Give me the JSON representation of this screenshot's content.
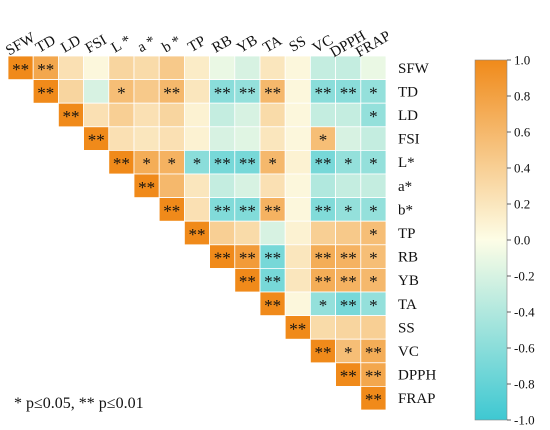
{
  "chart_data": {
    "type": "heatmap",
    "shape": "upper-triangle",
    "variables": [
      "SFW",
      "TD",
      "LD",
      "FSI",
      "L*",
      "a*",
      "b*",
      "TP",
      "RB",
      "YB",
      "TA",
      "SS",
      "VC",
      "DPPH",
      "FRAP"
    ],
    "x_tick_labels": [
      "SFW",
      "TD",
      "LD",
      "FSI",
      "L *",
      "a *",
      "b *",
      "TP",
      "RB",
      "YB",
      "TA",
      "SS",
      "VC",
      "DPPH",
      "FRAP"
    ],
    "y_tick_labels": [
      "SFW",
      "TD",
      "LD",
      "FSI",
      "L*",
      "a*",
      "b*",
      "TP",
      "RB",
      "YB",
      "TA",
      "SS",
      "VC",
      "DPPH",
      "FRAP"
    ],
    "values": [
      [
        1.0,
        0.75,
        0.25,
        0.05,
        0.35,
        0.3,
        0.45,
        0.15,
        -0.1,
        -0.2,
        0.2,
        0.05,
        -0.3,
        -0.3,
        -0.1
      ],
      [
        null,
        1.0,
        0.35,
        -0.2,
        0.55,
        0.45,
        0.6,
        0.2,
        -0.6,
        -0.55,
        0.6,
        0.05,
        -0.6,
        -0.6,
        -0.55
      ],
      [
        null,
        null,
        1.0,
        0.25,
        0.4,
        0.25,
        0.35,
        0.1,
        -0.3,
        -0.2,
        0.3,
        0.05,
        -0.3,
        -0.3,
        -0.55
      ],
      [
        null,
        null,
        null,
        1.0,
        0.25,
        0.2,
        0.25,
        0.1,
        -0.2,
        -0.15,
        0.2,
        0.05,
        0.55,
        -0.2,
        -0.3
      ],
      [
        null,
        null,
        null,
        null,
        1.0,
        0.7,
        0.65,
        -0.6,
        -0.7,
        -0.7,
        0.6,
        0.1,
        -0.7,
        -0.55,
        -0.55
      ],
      [
        null,
        null,
        null,
        null,
        null,
        1.0,
        0.6,
        0.2,
        -0.3,
        -0.2,
        0.25,
        0.05,
        -0.4,
        -0.3,
        -0.3
      ],
      [
        null,
        null,
        null,
        null,
        null,
        null,
        1.0,
        0.25,
        -0.65,
        -0.65,
        0.65,
        0.05,
        -0.65,
        -0.55,
        -0.55
      ],
      [
        null,
        null,
        null,
        null,
        null,
        null,
        null,
        1.0,
        0.4,
        0.3,
        -0.2,
        0.1,
        0.4,
        0.45,
        0.55
      ],
      [
        null,
        null,
        null,
        null,
        null,
        null,
        null,
        null,
        1.0,
        0.85,
        -0.7,
        0.2,
        0.7,
        0.65,
        0.55
      ],
      [
        null,
        null,
        null,
        null,
        null,
        null,
        null,
        null,
        null,
        1.0,
        -0.7,
        0.2,
        0.7,
        0.65,
        0.6
      ],
      [
        null,
        null,
        null,
        null,
        null,
        null,
        null,
        null,
        null,
        null,
        1.0,
        0.05,
        -0.55,
        -0.7,
        -0.55
      ],
      [
        null,
        null,
        null,
        null,
        null,
        null,
        null,
        null,
        null,
        null,
        null,
        1.0,
        0.3,
        0.35,
        0.4
      ],
      [
        null,
        null,
        null,
        null,
        null,
        null,
        null,
        null,
        null,
        null,
        null,
        null,
        1.0,
        0.55,
        0.7
      ],
      [
        null,
        null,
        null,
        null,
        null,
        null,
        null,
        null,
        null,
        null,
        null,
        null,
        null,
        1.0,
        0.75
      ],
      [
        null,
        null,
        null,
        null,
        null,
        null,
        null,
        null,
        null,
        null,
        null,
        null,
        null,
        null,
        1.0
      ]
    ],
    "significance": [
      [
        "**",
        "**",
        "",
        "",
        "",
        "",
        "",
        "",
        "",
        "",
        "",
        "",
        "",
        "",
        ""
      ],
      [
        "",
        "**",
        "",
        "",
        "*",
        "",
        "**",
        "",
        "**",
        "**",
        "**",
        "",
        "**",
        "**",
        "*"
      ],
      [
        "",
        "",
        "**",
        "",
        "",
        "",
        "",
        "",
        "",
        "",
        "",
        "",
        "",
        "",
        "*"
      ],
      [
        "",
        "",
        "",
        "**",
        "",
        "",
        "",
        "",
        "",
        "",
        "",
        "",
        "*",
        "",
        ""
      ],
      [
        "",
        "",
        "",
        "",
        "**",
        "*",
        "*",
        "*",
        "**",
        "**",
        "*",
        "",
        "**",
        "*",
        "*"
      ],
      [
        "",
        "",
        "",
        "",
        "",
        "**",
        "",
        "",
        "",
        "",
        "",
        "",
        "",
        "",
        ""
      ],
      [
        "",
        "",
        "",
        "",
        "",
        "",
        "**",
        "",
        "**",
        "**",
        "**",
        "",
        "**",
        "*",
        "*"
      ],
      [
        "",
        "",
        "",
        "",
        "",
        "",
        "",
        "**",
        "",
        "",
        "",
        "",
        "",
        "",
        "*"
      ],
      [
        "",
        "",
        "",
        "",
        "",
        "",
        "",
        "",
        "**",
        "**",
        "**",
        "",
        "**",
        "**",
        "*"
      ],
      [
        "",
        "",
        "",
        "",
        "",
        "",
        "",
        "",
        "",
        "**",
        "**",
        "",
        "**",
        "**",
        "*"
      ],
      [
        "",
        "",
        "",
        "",
        "",
        "",
        "",
        "",
        "",
        "",
        "**",
        "",
        "*",
        "**",
        "*"
      ],
      [
        "",
        "",
        "",
        "",
        "",
        "",
        "",
        "",
        "",
        "",
        "",
        "**",
        "",
        "",
        ""
      ],
      [
        "",
        "",
        "",
        "",
        "",
        "",
        "",
        "",
        "",
        "",
        "",
        "",
        "**",
        "*",
        "**"
      ],
      [
        "",
        "",
        "",
        "",
        "",
        "",
        "",
        "",
        "",
        "",
        "",
        "",
        "",
        "**",
        "**"
      ],
      [
        "",
        "",
        "",
        "",
        "",
        "",
        "",
        "",
        "",
        "",
        "",
        "",
        "",
        "",
        "**"
      ]
    ],
    "colorbar": {
      "range": [
        -1.0,
        1.0
      ],
      "ticks": [
        "1.0",
        "0.8",
        "0.6",
        "0.4",
        "0.2",
        "0.0",
        "-0.2",
        "-0.4",
        "-0.6",
        "-0.8",
        "-1.0"
      ],
      "colors": {
        "negative": "#3ec8d2",
        "neutral": "#fdfde6",
        "positive": "#f08a1a"
      }
    },
    "legend_note": "* p≤0.05, ** p≤0.01"
  }
}
